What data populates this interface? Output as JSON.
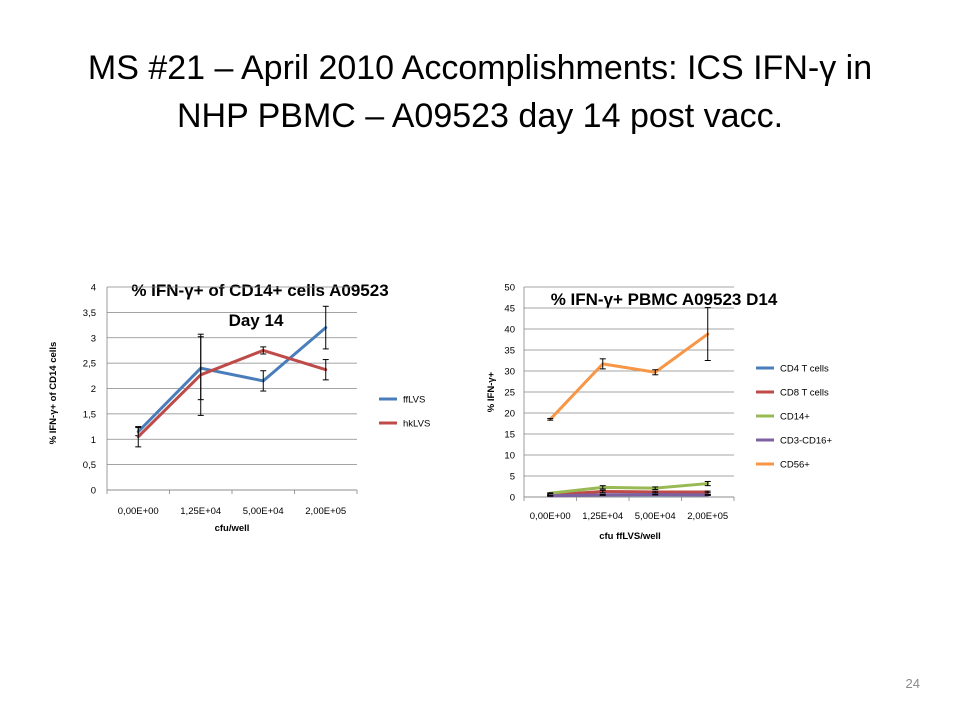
{
  "slide": {
    "title_line1": "MS #21 – April 2010 Accomplishments:  ICS IFN-γ in",
    "title_line2": "NHP PBMC –  A09523 day 14 post vacc.",
    "page_number": "24"
  },
  "colors": {
    "blue": "#4a7ebb",
    "red": "#be4b48",
    "green": "#98b954",
    "purple": "#7d60a0",
    "orange": "#f79646",
    "gridline": "#868686",
    "axis": "#868686"
  },
  "chart_data": [
    {
      "type": "line",
      "title": "% IFN-γ+ of CD14+ cells A09523",
      "title_line2": "Day 14",
      "xlabel": "cfu/well",
      "ylabel": "% IFN-γ+ of CD14 cells",
      "categories": [
        "0,00E+00",
        "1,25E+04",
        "5,00E+04",
        "2,00E+05"
      ],
      "ylim": [
        0,
        4
      ],
      "yticks": [
        "0",
        "0,5",
        "1",
        "1,5",
        "2",
        "2,5",
        "3",
        "3,5",
        "4"
      ],
      "grid": true,
      "legend_position": "right",
      "series": [
        {
          "name": "ffLVS",
          "color": "#4a7ebb",
          "values": [
            1.15,
            2.4,
            2.15,
            3.2
          ],
          "errors": [
            0.08,
            0.62,
            0.2,
            0.42
          ]
        },
        {
          "name": "hkLVS",
          "color": "#be4b48",
          "values": [
            1.05,
            2.27,
            2.75,
            2.37
          ],
          "errors": [
            0.2,
            0.8,
            0.07,
            0.2
          ]
        }
      ]
    },
    {
      "type": "line",
      "title": "% IFN-γ+ PBMC A09523 D14",
      "xlabel": "cfu ffLVS/well",
      "ylabel": "% IFN-γ+",
      "categories": [
        "0,00E+00",
        "1,25E+04",
        "5,00E+04",
        "2,00E+05"
      ],
      "ylim": [
        0,
        50
      ],
      "yticks": [
        "0",
        "5",
        "10",
        "15",
        "20",
        "25",
        "30",
        "35",
        "40",
        "45",
        "50"
      ],
      "grid": true,
      "legend_position": "right",
      "series": [
        {
          "name": "CD4 T cells",
          "color": "#4a7ebb",
          "values": [
            0.3,
            0.5,
            0.5,
            0.5
          ],
          "errors": [
            0.1,
            0.1,
            0.1,
            0.1
          ]
        },
        {
          "name": "CD8 T cells",
          "color": "#be4b48",
          "values": [
            0.5,
            1.3,
            1.2,
            1.2
          ],
          "errors": [
            0.1,
            0.3,
            0.2,
            0.2
          ]
        },
        {
          "name": "CD14+",
          "color": "#98b954",
          "values": [
            0.9,
            2.3,
            2.1,
            3.2
          ],
          "errors": [
            0.1,
            0.4,
            0.3,
            0.5
          ]
        },
        {
          "name": "CD3-CD16+",
          "color": "#7d60a0",
          "values": [
            0.3,
            0.5,
            0.6,
            0.5
          ],
          "errors": [
            0.1,
            0.1,
            0.1,
            0.1
          ]
        },
        {
          "name": "CD56+",
          "color": "#f79646",
          "values": [
            18.5,
            31.7,
            29.7,
            38.8
          ],
          "errors": [
            0.2,
            1.2,
            0.6,
            6.3
          ]
        }
      ]
    }
  ]
}
